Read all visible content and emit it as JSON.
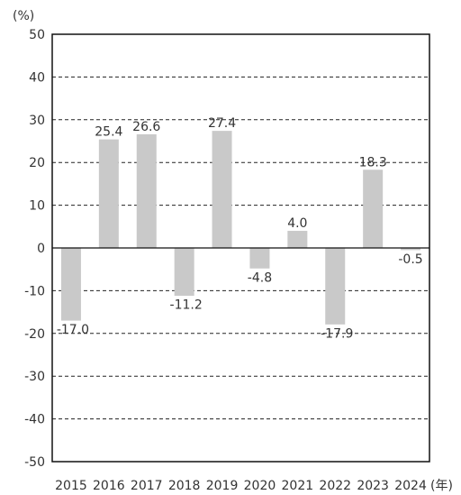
{
  "chart_data": {
    "type": "bar",
    "title": "",
    "y_unit_label": "(%)",
    "x_unit_label": "(年)",
    "categories": [
      "2015",
      "2016",
      "2017",
      "2018",
      "2019",
      "2020",
      "2021",
      "2022",
      "2023",
      "2024"
    ],
    "values": [
      -17.0,
      25.4,
      26.6,
      -11.2,
      27.4,
      -4.8,
      4.0,
      -17.9,
      18.3,
      -0.5
    ],
    "value_labels": [
      "-17.0",
      "25.4",
      "26.6",
      "-11.2",
      "27.4",
      "-4.8",
      "4.0",
      "-17.9",
      "18.3",
      "-0.5"
    ],
    "ylim": [
      -50,
      50
    ],
    "yticks": [
      "50",
      "40",
      "30",
      "20",
      "10",
      "0",
      "-10",
      "-20",
      "-30",
      "-40",
      "-50"
    ],
    "grid": "dashed horizontal",
    "bar_color": "#c9c9c9",
    "legend": "none"
  }
}
